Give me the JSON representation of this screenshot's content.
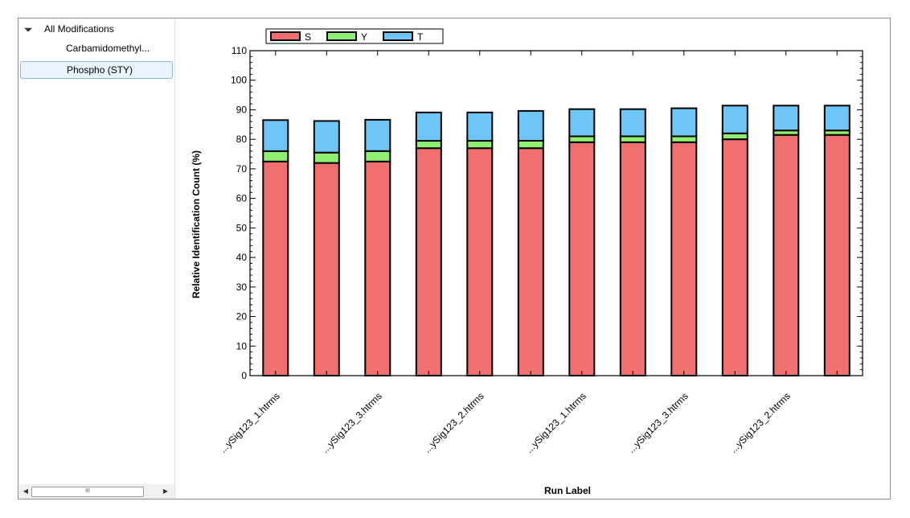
{
  "tree": {
    "root_label": "All Modifications",
    "items": [
      {
        "label": "Carbamidomethyl..."
      },
      {
        "label": "Phospho (STY)",
        "selected": true
      }
    ],
    "scroll_thumb_glyph": "III"
  },
  "chart_data": {
    "type": "bar",
    "stacked": true,
    "categories": [
      "...ySig123_1.htrms",
      "",
      "...ySig123_3.htrms",
      "",
      "...ySig123_2.htrms",
      "",
      "...ySig123_1.htrms",
      "",
      "...ySig123_3.htrms",
      "",
      "...ySig123_2.htrms",
      ""
    ],
    "series": [
      {
        "name": "S",
        "color": "#f07070",
        "values": [
          72.5,
          72,
          72.5,
          77,
          77,
          77,
          79,
          79,
          79,
          80,
          81.5,
          81.5
        ]
      },
      {
        "name": "Y",
        "color": "#90ee70",
        "values": [
          3.5,
          3.5,
          3.5,
          2.5,
          2.5,
          2.5,
          2,
          2,
          2,
          2,
          1.5,
          1.5
        ]
      },
      {
        "name": "T",
        "color": "#6ec6f6",
        "values": [
          10.5,
          10.7,
          10.6,
          9.6,
          9.6,
          10.1,
          9.2,
          9.2,
          9.5,
          9.4,
          8.4,
          8.4
        ]
      }
    ],
    "xlabel": "Run Label",
    "ylabel": "Relative Identification Count (%)",
    "ylim": [
      0,
      110
    ],
    "yticks": [
      0,
      10,
      20,
      30,
      40,
      50,
      60,
      70,
      80,
      90,
      100,
      110
    ],
    "legend_position": "top-left",
    "grid": false
  }
}
